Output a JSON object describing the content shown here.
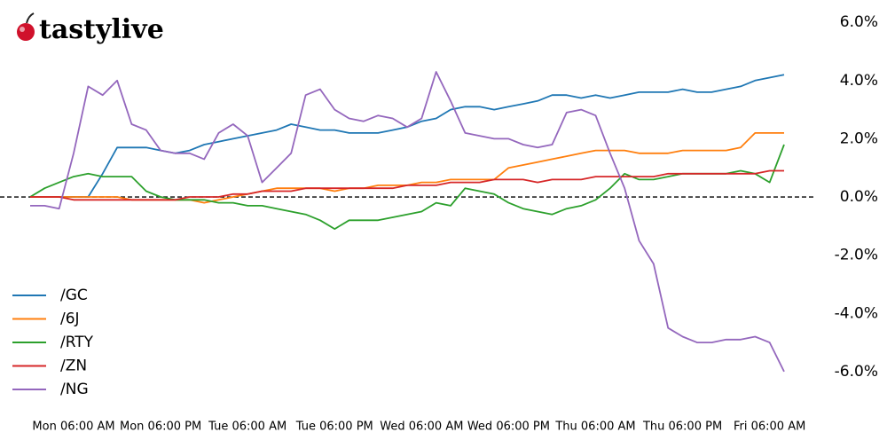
{
  "logo_text": "tastylive",
  "chart_data": {
    "type": "line",
    "x": [
      "Mon 12:00 AM",
      "Mon 02:00 AM",
      "Mon 04:00 AM",
      "Mon 06:00 AM",
      "Mon 08:00 AM",
      "Mon 10:00 AM",
      "Mon 12:00 PM",
      "Mon 02:00 PM",
      "Mon 04:00 PM",
      "Mon 06:00 PM",
      "Mon 08:00 PM",
      "Mon 10:00 PM",
      "Tue 12:00 AM",
      "Tue 02:00 AM",
      "Tue 04:00 AM",
      "Tue 06:00 AM",
      "Tue 08:00 AM",
      "Tue 10:00 AM",
      "Tue 12:00 PM",
      "Tue 02:00 PM",
      "Tue 04:00 PM",
      "Tue 06:00 PM",
      "Tue 08:00 PM",
      "Tue 10:00 PM",
      "Wed 12:00 AM",
      "Wed 02:00 AM",
      "Wed 04:00 AM",
      "Wed 06:00 AM",
      "Wed 08:00 AM",
      "Wed 10:00 AM",
      "Wed 12:00 PM",
      "Wed 02:00 PM",
      "Wed 04:00 PM",
      "Wed 06:00 PM",
      "Wed 08:00 PM",
      "Wed 10:00 PM",
      "Thu 12:00 AM",
      "Thu 02:00 AM",
      "Thu 04:00 AM",
      "Thu 06:00 AM",
      "Thu 08:00 AM",
      "Thu 10:00 AM",
      "Thu 12:00 PM",
      "Thu 02:00 PM",
      "Thu 04:00 PM",
      "Thu 06:00 PM",
      "Thu 08:00 PM",
      "Thu 10:00 PM",
      "Fri 12:00 AM",
      "Fri 02:00 AM",
      "Fri 04:00 AM",
      "Fri 06:00 AM",
      "Fri 08:00 AM"
    ],
    "xticks": [
      "Mon 06:00 AM",
      "Mon 06:00 PM",
      "Tue 06:00 AM",
      "Tue 06:00 PM",
      "Wed 06:00 AM",
      "Wed 06:00 PM",
      "Thu 06:00 AM",
      "Thu 06:00 PM",
      "Fri 06:00 AM"
    ],
    "series": [
      {
        "name": "/GC",
        "color": "#1f77b4",
        "values": [
          0,
          0,
          0,
          0,
          0,
          0.8,
          1.7,
          1.7,
          1.7,
          1.6,
          1.5,
          1.6,
          1.8,
          1.9,
          2.0,
          2.1,
          2.2,
          2.3,
          2.5,
          2.4,
          2.3,
          2.3,
          2.2,
          2.2,
          2.2,
          2.3,
          2.4,
          2.6,
          2.7,
          3.0,
          3.1,
          3.1,
          3.0,
          3.1,
          3.2,
          3.3,
          3.5,
          3.5,
          3.4,
          3.5,
          3.4,
          3.5,
          3.6,
          3.6,
          3.6,
          3.7,
          3.6,
          3.6,
          3.7,
          3.8,
          4.0,
          4.1,
          4.2
        ]
      },
      {
        "name": "/6J",
        "color": "#ff7f0e",
        "values": [
          0,
          0,
          0,
          0,
          0,
          0,
          0,
          -0.1,
          -0.1,
          -0.1,
          -0.1,
          -0.1,
          -0.2,
          -0.1,
          0,
          0.1,
          0.2,
          0.3,
          0.3,
          0.3,
          0.3,
          0.2,
          0.3,
          0.3,
          0.4,
          0.4,
          0.4,
          0.5,
          0.5,
          0.6,
          0.6,
          0.6,
          0.6,
          1.0,
          1.1,
          1.2,
          1.3,
          1.4,
          1.5,
          1.6,
          1.6,
          1.6,
          1.5,
          1.5,
          1.5,
          1.6,
          1.6,
          1.6,
          1.6,
          1.7,
          2.2,
          2.2,
          2.2
        ]
      },
      {
        "name": "/RTY",
        "color": "#2ca02c",
        "values": [
          0,
          0.3,
          0.5,
          0.7,
          0.8,
          0.7,
          0.7,
          0.7,
          0.2,
          0,
          -0.1,
          -0.1,
          -0.1,
          -0.2,
          -0.2,
          -0.3,
          -0.3,
          -0.4,
          -0.5,
          -0.6,
          -0.8,
          -1.1,
          -0.8,
          -0.8,
          -0.8,
          -0.7,
          -0.6,
          -0.5,
          -0.2,
          -0.3,
          0.3,
          0.2,
          0.1,
          -0.2,
          -0.4,
          -0.5,
          -0.6,
          -0.4,
          -0.3,
          -0.1,
          0.3,
          0.8,
          0.6,
          0.6,
          0.7,
          0.8,
          0.8,
          0.8,
          0.8,
          0.9,
          0.8,
          0.5,
          1.8
        ]
      },
      {
        "name": "/ZN",
        "color": "#d62728",
        "values": [
          0,
          0,
          0,
          -0.1,
          -0.1,
          -0.1,
          -0.1,
          -0.1,
          -0.1,
          -0.1,
          -0.1,
          0,
          0,
          0,
          0.1,
          0.1,
          0.2,
          0.2,
          0.2,
          0.3,
          0.3,
          0.3,
          0.3,
          0.3,
          0.3,
          0.3,
          0.4,
          0.4,
          0.4,
          0.5,
          0.5,
          0.5,
          0.6,
          0.6,
          0.6,
          0.5,
          0.6,
          0.6,
          0.6,
          0.7,
          0.7,
          0.7,
          0.7,
          0.7,
          0.8,
          0.8,
          0.8,
          0.8,
          0.8,
          0.8,
          0.8,
          0.9,
          0.9
        ]
      },
      {
        "name": "/NG",
        "color": "#9467bd",
        "values": [
          -0.3,
          -0.3,
          -0.4,
          1.5,
          3.8,
          3.5,
          4.0,
          2.5,
          2.3,
          1.6,
          1.5,
          1.5,
          1.3,
          2.2,
          2.5,
          2.1,
          0.5,
          1.0,
          1.5,
          3.5,
          3.7,
          3.0,
          2.7,
          2.6,
          2.8,
          2.7,
          2.4,
          2.7,
          4.3,
          3.3,
          2.2,
          2.1,
          2.0,
          2.0,
          1.8,
          1.7,
          1.8,
          2.9,
          3.0,
          2.8,
          1.5,
          0.3,
          -1.5,
          -2.3,
          -4.5,
          -4.8,
          -5.0,
          -5.0,
          -4.9,
          -4.9,
          -4.8,
          -5.0,
          -6.0
        ]
      }
    ],
    "ylim": [
      -7.1,
      6.6
    ],
    "yticks": [
      {
        "value": 6,
        "label": "6.0%"
      },
      {
        "value": 4,
        "label": "4.0%"
      },
      {
        "value": 2,
        "label": "2.0%"
      },
      {
        "value": 0,
        "label": "0.0%"
      },
      {
        "value": -2,
        "label": "-2.0%"
      },
      {
        "value": -4,
        "label": "-4.0%"
      },
      {
        "value": -6,
        "label": "-6.0%"
      }
    ],
    "zero_line": true,
    "legend": "lower left"
  }
}
